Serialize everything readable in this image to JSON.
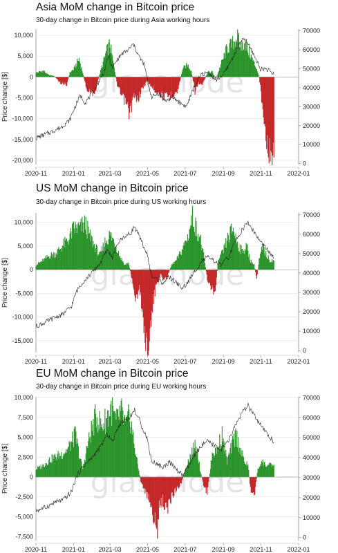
{
  "chart_data": [
    {
      "type": "bar",
      "title": "Asia MoM change in Bitcoin price",
      "subtitle": "30-day change in Bitcoin price during Asia working hours",
      "ylabel": "Price change [$]",
      "watermark": "glassnode",
      "ylim": [
        -21000,
        11500
      ],
      "y2lim": [
        -500,
        71000
      ],
      "y_ticks": [
        "10,000",
        "5,000",
        "0",
        "-5,000",
        "-10,000",
        "-15,000",
        "-20,000"
      ],
      "y_tick_values": [
        10000,
        5000,
        0,
        -5000,
        -10000,
        -15000,
        -20000
      ],
      "y2_ticks": [
        "70000",
        "60000",
        "50000",
        "40000",
        "30000",
        "20000",
        "10000",
        "0"
      ],
      "y2_tick_values": [
        70000,
        60000,
        50000,
        40000,
        30000,
        20000,
        10000,
        0
      ],
      "x_ticks": [
        "2020-11",
        "2021-01",
        "2021-03",
        "2021-05",
        "2021-07",
        "2021-09",
        "2021-11",
        "2022-01"
      ],
      "x_tick_values": [
        0,
        61,
        120,
        181,
        242,
        304,
        365,
        426
      ],
      "positive_color": "#2ca02c",
      "negative_color": "#d62728",
      "price_color": "#222222",
      "bar_anchors": [
        [
          0,
          1000
        ],
        [
          12,
          1500
        ],
        [
          20,
          500
        ],
        [
          30,
          200
        ],
        [
          40,
          -1500
        ],
        [
          50,
          -1800
        ],
        [
          55,
          1000
        ],
        [
          62,
          2000
        ],
        [
          70,
          4500
        ],
        [
          76,
          1000
        ],
        [
          82,
          -3000
        ],
        [
          90,
          -4000
        ],
        [
          96,
          -3500
        ],
        [
          106,
          2000
        ],
        [
          114,
          6000
        ],
        [
          120,
          8000
        ],
        [
          126,
          3000
        ],
        [
          132,
          -2000
        ],
        [
          138,
          -4500
        ],
        [
          145,
          -6000
        ],
        [
          152,
          -9000
        ],
        [
          158,
          -5000
        ],
        [
          165,
          -5500
        ],
        [
          172,
          -3000
        ],
        [
          180,
          -1000
        ],
        [
          186,
          -2000
        ],
        [
          192,
          -3000
        ],
        [
          200,
          -4000
        ],
        [
          210,
          -5000
        ],
        [
          220,
          -4500
        ],
        [
          230,
          -3500
        ],
        [
          238,
          2000
        ],
        [
          246,
          3000
        ],
        [
          252,
          1500
        ],
        [
          258,
          -3500
        ],
        [
          264,
          -1500
        ],
        [
          270,
          -2000
        ],
        [
          278,
          1000
        ],
        [
          286,
          1200
        ],
        [
          292,
          -500
        ],
        [
          300,
          3000
        ],
        [
          310,
          7000
        ],
        [
          318,
          8000
        ],
        [
          326,
          10000
        ],
        [
          332,
          7500
        ],
        [
          338,
          8500
        ],
        [
          346,
          6000
        ],
        [
          352,
          4000
        ],
        [
          358,
          2000
        ],
        [
          362,
          0
        ],
        [
          366,
          -5000
        ],
        [
          372,
          -12000
        ],
        [
          378,
          -19000
        ],
        [
          382,
          -20000
        ],
        [
          385,
          -17000
        ],
        [
          386,
          -17000
        ]
      ],
      "price_anchors": [
        [
          0,
          13500
        ],
        [
          20,
          16000
        ],
        [
          40,
          19000
        ],
        [
          55,
          23000
        ],
        [
          62,
          29000
        ],
        [
          72,
          36000
        ],
        [
          80,
          32000
        ],
        [
          95,
          39000
        ],
        [
          110,
          48000
        ],
        [
          118,
          57000
        ],
        [
          124,
          50000
        ],
        [
          132,
          55000
        ],
        [
          140,
          58000
        ],
        [
          150,
          60000
        ],
        [
          158,
          63000
        ],
        [
          168,
          56000
        ],
        [
          176,
          52000
        ],
        [
          182,
          42000
        ],
        [
          188,
          35000
        ],
        [
          198,
          37000
        ],
        [
          210,
          33000
        ],
        [
          222,
          35000
        ],
        [
          234,
          32000
        ],
        [
          244,
          30000
        ],
        [
          256,
          40000
        ],
        [
          268,
          47000
        ],
        [
          280,
          48000
        ],
        [
          292,
          44000
        ],
        [
          304,
          47000
        ],
        [
          318,
          55000
        ],
        [
          330,
          63000
        ],
        [
          338,
          66000
        ],
        [
          346,
          62000
        ],
        [
          354,
          57000
        ],
        [
          364,
          50000
        ],
        [
          374,
          50000
        ],
        [
          386,
          47000
        ]
      ]
    },
    {
      "type": "bar",
      "title": "US MoM change in Bitcoin price",
      "subtitle": "30-day change in Bitcoin price during US working hours",
      "ylabel": "Price change [$]",
      "watermark": "glassnode",
      "ylim": [
        -17500,
        12000
      ],
      "y2lim": [
        -1000,
        71000
      ],
      "y_ticks": [
        "10,000",
        "5,000",
        "0",
        "-5,000",
        "-10,000",
        "-15,000"
      ],
      "y_tick_values": [
        10000,
        5000,
        0,
        -5000,
        -10000,
        -15000
      ],
      "y2_ticks": [
        "70000",
        "60000",
        "50000",
        "40000",
        "30000",
        "20000",
        "10000",
        "0"
      ],
      "y2_tick_values": [
        70000,
        60000,
        50000,
        40000,
        30000,
        20000,
        10000,
        0
      ],
      "x_ticks": [
        "2020-11",
        "2021-01",
        "2021-03",
        "2021-05",
        "2021-07",
        "2021-09",
        "2021-11",
        "2022-01"
      ],
      "x_tick_values": [
        0,
        61,
        120,
        181,
        242,
        304,
        365,
        426
      ],
      "positive_color": "#2ca02c",
      "negative_color": "#d62728",
      "price_color": "#222222",
      "bar_anchors": [
        [
          0,
          1000
        ],
        [
          12,
          2000
        ],
        [
          22,
          3000
        ],
        [
          32,
          3500
        ],
        [
          42,
          5000
        ],
        [
          52,
          6500
        ],
        [
          62,
          9000
        ],
        [
          72,
          9000
        ],
        [
          80,
          10000
        ],
        [
          88,
          7000
        ],
        [
          96,
          5000
        ],
        [
          104,
          3000
        ],
        [
          112,
          6000
        ],
        [
          120,
          7500
        ],
        [
          128,
          6000
        ],
        [
          136,
          3000
        ],
        [
          144,
          1000
        ],
        [
          150,
          1500
        ],
        [
          156,
          -2000
        ],
        [
          162,
          -6500
        ],
        [
          168,
          -4000
        ],
        [
          174,
          -10000
        ],
        [
          178,
          -17000
        ],
        [
          182,
          -15000
        ],
        [
          186,
          -13000
        ],
        [
          190,
          -7000
        ],
        [
          196,
          -3000
        ],
        [
          202,
          -1000
        ],
        [
          206,
          -2000
        ],
        [
          212,
          -2000
        ],
        [
          220,
          1000
        ],
        [
          228,
          2000
        ],
        [
          236,
          4000
        ],
        [
          246,
          7000
        ],
        [
          254,
          11500
        ],
        [
          260,
          9000
        ],
        [
          266,
          7000
        ],
        [
          272,
          3000
        ],
        [
          278,
          -2000
        ],
        [
          284,
          -4000
        ],
        [
          290,
          -5000
        ],
        [
          296,
          2000
        ],
        [
          304,
          4000
        ],
        [
          312,
          7000
        ],
        [
          320,
          9000
        ],
        [
          326,
          6000
        ],
        [
          334,
          4000
        ],
        [
          342,
          5000
        ],
        [
          348,
          2000
        ],
        [
          354,
          1000
        ],
        [
          358,
          -2000
        ],
        [
          362,
          2000
        ],
        [
          368,
          5000
        ],
        [
          374,
          3000
        ],
        [
          380,
          2000
        ],
        [
          386,
          2000
        ]
      ],
      "price_anchors": [
        [
          0,
          12500
        ],
        [
          15,
          14500
        ],
        [
          30,
          17000
        ],
        [
          45,
          19000
        ],
        [
          58,
          23000
        ],
        [
          65,
          30000
        ],
        [
          75,
          35000
        ],
        [
          88,
          39000
        ],
        [
          104,
          45000
        ],
        [
          116,
          52000
        ],
        [
          124,
          48000
        ],
        [
          134,
          56000
        ],
        [
          144,
          59000
        ],
        [
          152,
          60000
        ],
        [
          160,
          64000
        ],
        [
          170,
          57000
        ],
        [
          180,
          50000
        ],
        [
          188,
          38000
        ],
        [
          196,
          37000
        ],
        [
          206,
          35000
        ],
        [
          216,
          38000
        ],
        [
          228,
          35000
        ],
        [
          238,
          32000
        ],
        [
          246,
          35000
        ],
        [
          256,
          40000
        ],
        [
          268,
          46000
        ],
        [
          278,
          48000
        ],
        [
          290,
          46000
        ],
        [
          300,
          44000
        ],
        [
          312,
          48000
        ],
        [
          326,
          58000
        ],
        [
          336,
          63000
        ],
        [
          344,
          66000
        ],
        [
          352,
          62000
        ],
        [
          362,
          57000
        ],
        [
          372,
          53000
        ],
        [
          380,
          50000
        ],
        [
          386,
          48000
        ]
      ]
    },
    {
      "type": "bar",
      "title": "EU MoM change in Bitcoin price",
      "subtitle": "30-day change in Bitcoin price during EU working hours",
      "ylabel": "Price change [$]",
      "watermark": "glassnode",
      "ylim": [
        -8000,
        10100
      ],
      "y2lim": [
        -1500,
        70500
      ],
      "y_ticks": [
        "10,000",
        "7,500",
        "5,000",
        "2,500",
        "0",
        "-2,500",
        "-5,000",
        "-7,500"
      ],
      "y_tick_values": [
        10000,
        7500,
        5000,
        2500,
        0,
        -2500,
        -5000,
        -7500
      ],
      "y2_ticks": [
        "70000",
        "60000",
        "50000",
        "40000",
        "30000",
        "20000",
        "10000",
        "0"
      ],
      "y2_tick_values": [
        70000,
        60000,
        50000,
        40000,
        30000,
        20000,
        10000,
        0
      ],
      "x_ticks": [
        "2020-11",
        "2021-01",
        "2021-03",
        "2021-05",
        "2021-07",
        "2021-09",
        "2021-11",
        "2022-01"
      ],
      "x_tick_values": [
        0,
        61,
        120,
        181,
        242,
        304,
        365,
        426
      ],
      "positive_color": "#2ca02c",
      "negative_color": "#d62728",
      "price_color": "#222222",
      "bar_anchors": [
        [
          0,
          1000
        ],
        [
          12,
          1500
        ],
        [
          22,
          2200
        ],
        [
          32,
          2600
        ],
        [
          42,
          3000
        ],
        [
          52,
          3600
        ],
        [
          58,
          4500
        ],
        [
          64,
          5500
        ],
        [
          70,
          3000
        ],
        [
          76,
          1000
        ],
        [
          82,
          3500
        ],
        [
          90,
          6000
        ],
        [
          98,
          8000
        ],
        [
          106,
          6500
        ],
        [
          114,
          7500
        ],
        [
          122,
          9000
        ],
        [
          130,
          7000
        ],
        [
          138,
          8500
        ],
        [
          146,
          6500
        ],
        [
          152,
          8000
        ],
        [
          158,
          5000
        ],
        [
          164,
          2000
        ],
        [
          170,
          -500
        ],
        [
          178,
          -2000
        ],
        [
          186,
          -3500
        ],
        [
          192,
          -5500
        ],
        [
          196,
          -7500
        ],
        [
          200,
          -4000
        ],
        [
          206,
          -3000
        ],
        [
          212,
          -4500
        ],
        [
          220,
          -2500
        ],
        [
          228,
          -1500
        ],
        [
          236,
          -800
        ],
        [
          244,
          1500
        ],
        [
          252,
          3000
        ],
        [
          260,
          4500
        ],
        [
          266,
          1000
        ],
        [
          272,
          -1000
        ],
        [
          278,
          -2000
        ],
        [
          286,
          3000
        ],
        [
          294,
          3500
        ],
        [
          302,
          5500
        ],
        [
          310,
          2000
        ],
        [
          318,
          4000
        ],
        [
          324,
          5500
        ],
        [
          332,
          3500
        ],
        [
          338,
          2000
        ],
        [
          344,
          1500
        ],
        [
          348,
          -1500
        ],
        [
          354,
          -2500
        ],
        [
          360,
          1000
        ],
        [
          366,
          2000
        ],
        [
          374,
          1500
        ],
        [
          380,
          1500
        ],
        [
          386,
          1500
        ]
      ],
      "price_anchors": [
        [
          0,
          13500
        ],
        [
          15,
          15000
        ],
        [
          30,
          17500
        ],
        [
          45,
          19000
        ],
        [
          58,
          23000
        ],
        [
          65,
          30000
        ],
        [
          75,
          35000
        ],
        [
          88,
          39000
        ],
        [
          104,
          45000
        ],
        [
          116,
          52000
        ],
        [
          124,
          48000
        ],
        [
          134,
          56000
        ],
        [
          144,
          59000
        ],
        [
          152,
          60000
        ],
        [
          160,
          64000
        ],
        [
          170,
          57000
        ],
        [
          180,
          50000
        ],
        [
          188,
          38000
        ],
        [
          196,
          37000
        ],
        [
          206,
          35000
        ],
        [
          216,
          38000
        ],
        [
          228,
          34000
        ],
        [
          238,
          31000
        ],
        [
          246,
          35000
        ],
        [
          256,
          40000
        ],
        [
          268,
          46000
        ],
        [
          278,
          48000
        ],
        [
          290,
          46000
        ],
        [
          300,
          44000
        ],
        [
          312,
          48000
        ],
        [
          326,
          58000
        ],
        [
          336,
          63000
        ],
        [
          344,
          66000
        ],
        [
          352,
          62000
        ],
        [
          362,
          57000
        ],
        [
          372,
          53000
        ],
        [
          380,
          50000
        ],
        [
          386,
          48000
        ]
      ]
    }
  ]
}
